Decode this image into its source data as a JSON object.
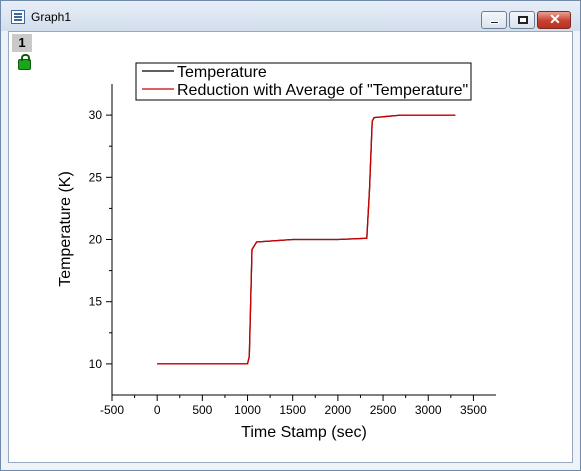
{
  "window": {
    "title": "Graph1",
    "layer_label": "1",
    "minimize_icon": "minimize-icon",
    "maximize_icon": "restore-icon",
    "close_icon": "close-icon",
    "close_glyph": "✕"
  },
  "chart_data": {
    "type": "line",
    "xlabel": "Time Stamp (sec)",
    "ylabel": "Temperature (K)",
    "xlim": [
      -500,
      3750
    ],
    "ylim": [
      7.5,
      32.5
    ],
    "xticks": [
      -500,
      0,
      500,
      1000,
      1500,
      2000,
      2500,
      3000,
      3500
    ],
    "yticks": [
      10,
      15,
      20,
      25,
      30
    ],
    "xtick_labels": [
      "-500",
      "0",
      "500",
      "1000",
      "1500",
      "2000",
      "2500",
      "3000",
      "3500"
    ],
    "ytick_labels": [
      "10",
      "15",
      "20",
      "25",
      "30"
    ],
    "legend_position": "top",
    "series": [
      {
        "name": "Temperature",
        "color": "#000000",
        "x": [
          0,
          1000,
          1020,
          1050,
          1100,
          1500,
          2000,
          2320,
          2350,
          2380,
          2400,
          2700,
          3300
        ],
        "y": [
          10,
          10,
          10.6,
          19.2,
          19.8,
          20,
          20,
          20.1,
          24,
          29.5,
          29.8,
          30,
          30
        ]
      },
      {
        "name": "Reduction with Average of \"Temperature\"",
        "color": "#cc0000",
        "x": [
          0,
          1000,
          1020,
          1050,
          1100,
          1500,
          2000,
          2320,
          2350,
          2380,
          2400,
          2700,
          3300
        ],
        "y": [
          10,
          10,
          10.6,
          19.2,
          19.8,
          20,
          20,
          20.1,
          24,
          29.5,
          29.8,
          30,
          30
        ]
      }
    ]
  }
}
